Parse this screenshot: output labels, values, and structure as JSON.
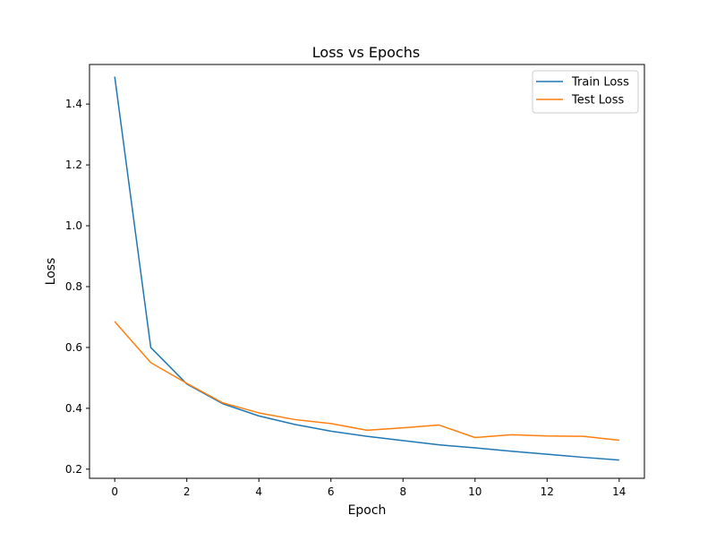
{
  "chart_data": {
    "type": "line",
    "title": "Loss vs Epochs",
    "xlabel": "Epoch",
    "ylabel": "Loss",
    "xlim": [
      -0.7,
      14.7
    ],
    "ylim": [
      0.17,
      1.53
    ],
    "xticks": [
      0,
      2,
      4,
      6,
      8,
      10,
      12,
      14
    ],
    "yticks": [
      0.2,
      0.4,
      0.6,
      0.8,
      1.0,
      1.2,
      1.4
    ],
    "ytick_labels": [
      "0.2",
      "0.4",
      "0.6",
      "0.8",
      "1.0",
      "1.2",
      "1.4"
    ],
    "grid": false,
    "legend_position": "top-right",
    "x": [
      0,
      1,
      2,
      3,
      4,
      5,
      6,
      7,
      8,
      9,
      10,
      11,
      12,
      13,
      14
    ],
    "series": [
      {
        "name": "Train Loss",
        "color": "#1f77b4",
        "values": [
          1.49,
          0.6,
          0.48,
          0.415,
          0.375,
          0.347,
          0.325,
          0.308,
          0.294,
          0.28,
          0.27,
          0.259,
          0.249,
          0.239,
          0.23
        ]
      },
      {
        "name": "Test Loss",
        "color": "#ff7f0e",
        "values": [
          0.685,
          0.55,
          0.482,
          0.418,
          0.385,
          0.363,
          0.35,
          0.328,
          0.336,
          0.345,
          0.304,
          0.313,
          0.309,
          0.308,
          0.295
        ]
      }
    ]
  }
}
